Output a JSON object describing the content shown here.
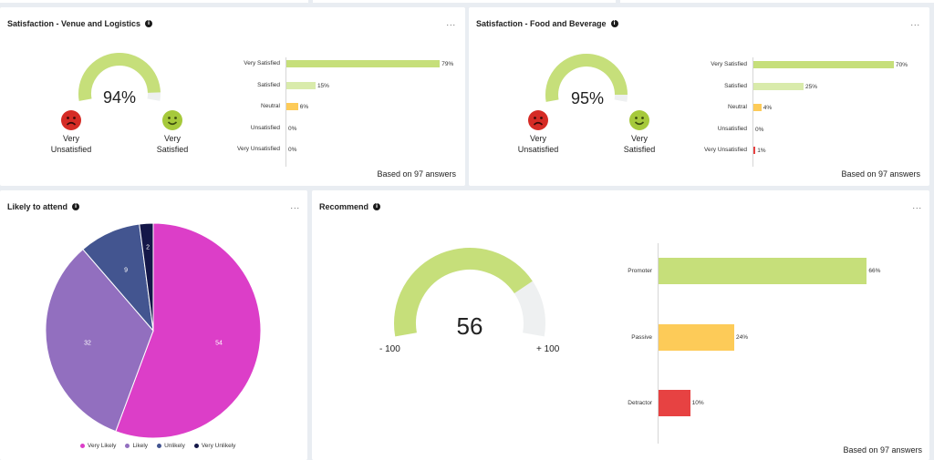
{
  "colors": {
    "very_satisfied": "#c6df7a",
    "satisfied": "#d9ebab",
    "neutral": "#fdcb58",
    "very_unsatisfied": "#e74242",
    "gauge_track": "#eef0f1",
    "promoter": "#c6df7a",
    "passive": "#fdcb58",
    "detractor": "#e74242",
    "very_likely": "#dc3ec8",
    "likely": "#926fbf",
    "unlikely": "#435590",
    "very_unlikely": "#141748"
  },
  "venue": {
    "title": "Satisfaction - Venue and Logistics",
    "info_icon": "i",
    "menu": "...",
    "gauge_value": "94%",
    "gauge_fraction": 0.94,
    "left_face_label_1": "Very",
    "left_face_label_2": "Unsatisfied",
    "right_face_label_1": "Very",
    "right_face_label_2": "Satisfied",
    "left_face_icon": "sad-face-icon",
    "right_face_icon": "happy-face-icon",
    "categories": [
      "Very Satisfied",
      "Satisfied",
      "Neutral",
      "Unsatisfied",
      "Very Unsatisfied"
    ],
    "values": [
      79,
      15,
      6,
      0,
      0
    ],
    "value_labels": [
      "79%",
      "15%",
      "6%",
      "0%",
      "0%"
    ],
    "footer": "Based on 97 answers"
  },
  "food": {
    "title": "Satisfaction - Food and Beverage",
    "info_icon": "i",
    "menu": "...",
    "gauge_value": "95%",
    "gauge_fraction": 0.95,
    "left_face_label_1": "Very",
    "left_face_label_2": "Unsatisfied",
    "right_face_label_1": "Very",
    "right_face_label_2": "Satisfied",
    "left_face_icon": "sad-face-icon",
    "right_face_icon": "happy-face-icon",
    "categories": [
      "Very Satisfied",
      "Satisfied",
      "Neutral",
      "Unsatisfied",
      "Very Unsatisfied"
    ],
    "values": [
      70,
      25,
      4,
      0,
      1
    ],
    "value_labels": [
      "70%",
      "25%",
      "4%",
      "0%",
      "1%"
    ],
    "footer": "Based on 97 answers"
  },
  "attend": {
    "title": "Likely to attend",
    "info_icon": "i",
    "menu": "...",
    "legend": [
      "Very Likely",
      "Likely",
      "Unlikely",
      "Very Unlikely"
    ]
  },
  "recommend": {
    "title": "Recommend",
    "info_icon": "i",
    "menu": "...",
    "gauge_value": "56",
    "gauge_min_label": "- 100",
    "gauge_max_label": "+ 100",
    "categories": [
      "Promoter",
      "Passive",
      "Detractor"
    ],
    "values": [
      66,
      24,
      10
    ],
    "value_labels": [
      "66%",
      "24%",
      "10%"
    ],
    "footer": "Based on 97 answers"
  },
  "chart_data": [
    {
      "type": "bar",
      "title": "Satisfaction - Venue and Logistics",
      "categories": [
        "Very Satisfied",
        "Satisfied",
        "Neutral",
        "Unsatisfied",
        "Very Unsatisfied"
      ],
      "values": [
        79,
        15,
        6,
        0,
        0
      ],
      "orientation": "horizontal",
      "unit": "%"
    },
    {
      "type": "bar",
      "title": "Satisfaction - Food and Beverage",
      "categories": [
        "Very Satisfied",
        "Satisfied",
        "Neutral",
        "Unsatisfied",
        "Very Unsatisfied"
      ],
      "values": [
        70,
        25,
        4,
        0,
        1
      ],
      "orientation": "horizontal",
      "unit": "%"
    },
    {
      "type": "pie",
      "title": "Likely to attend",
      "categories": [
        "Very Likely",
        "Likely",
        "Unlikely",
        "Very Unlikely"
      ],
      "values": [
        54,
        32,
        9,
        2
      ],
      "legend": "bottom"
    },
    {
      "type": "bar",
      "title": "Recommend",
      "categories": [
        "Promoter",
        "Passive",
        "Detractor"
      ],
      "values": [
        66,
        24,
        10
      ],
      "orientation": "horizontal",
      "unit": "%"
    }
  ]
}
